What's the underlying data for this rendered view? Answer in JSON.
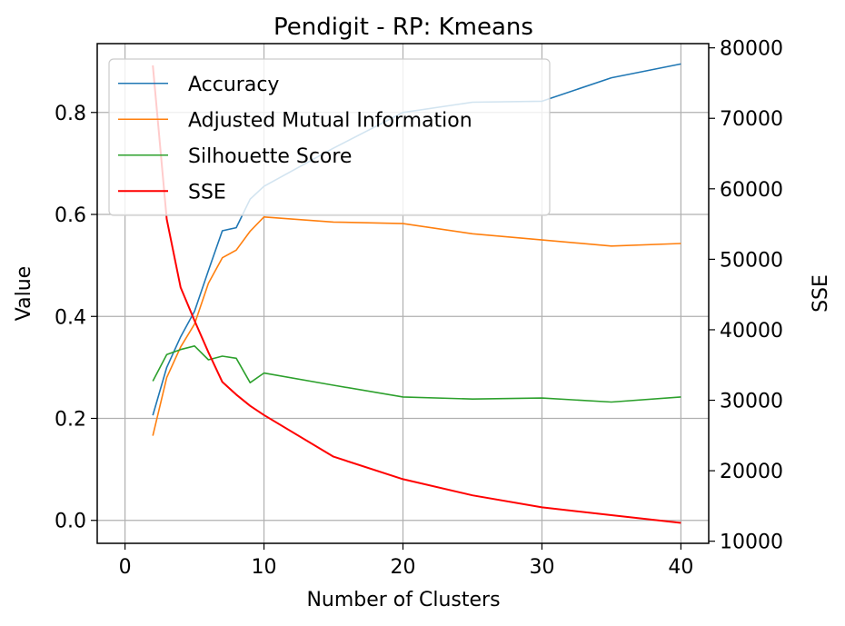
{
  "chart_data": {
    "type": "line",
    "title": "Pendigit - RP: Kmeans",
    "xlabel": "Number of Clusters",
    "ylabel": "Value",
    "y2label": "SSE",
    "xlim": [
      -2,
      42
    ],
    "ylim": [
      -0.045,
      0.935
    ],
    "y2lim": [
      9700,
      80600
    ],
    "xticks": [
      "0",
      "10",
      "20",
      "30",
      "40"
    ],
    "yticks": [
      "0.0",
      "0.2",
      "0.4",
      "0.6",
      "0.8"
    ],
    "y2ticks": [
      "10000",
      "20000",
      "30000",
      "40000",
      "50000",
      "60000",
      "70000",
      "80000"
    ],
    "grid": true,
    "legend_position": "top-left",
    "x": [
      2,
      3,
      4,
      5,
      6,
      7,
      8,
      9,
      10,
      15,
      20,
      25,
      30,
      35,
      40
    ],
    "series": [
      {
        "name": "Accuracy",
        "color": "#1f77b4",
        "axis": "left",
        "values": [
          0.206,
          0.3,
          0.36,
          0.41,
          0.49,
          0.568,
          0.574,
          0.63,
          0.655,
          0.73,
          0.8,
          0.82,
          0.822,
          0.868,
          0.895
        ]
      },
      {
        "name": "Adjusted Mutual Information",
        "color": "#ff7f0e",
        "axis": "left",
        "values": [
          0.166,
          0.28,
          0.34,
          0.385,
          0.465,
          0.515,
          0.53,
          0.567,
          0.595,
          0.585,
          0.582,
          0.562,
          0.55,
          0.538,
          0.543
        ]
      },
      {
        "name": "Silhouette Score",
        "color": "#2ca02c",
        "axis": "left",
        "values": [
          0.273,
          0.325,
          0.335,
          0.342,
          0.315,
          0.322,
          0.318,
          0.27,
          0.289,
          0.265,
          0.242,
          0.238,
          0.24,
          0.232,
          0.242
        ]
      },
      {
        "name": "SSE",
        "color": "#ff0000",
        "axis": "right",
        "values": [
          77500,
          55700,
          46000,
          41300,
          36800,
          32600,
          30800,
          29200,
          27900,
          22000,
          18800,
          16500,
          14800,
          13700,
          12600
        ]
      }
    ]
  }
}
